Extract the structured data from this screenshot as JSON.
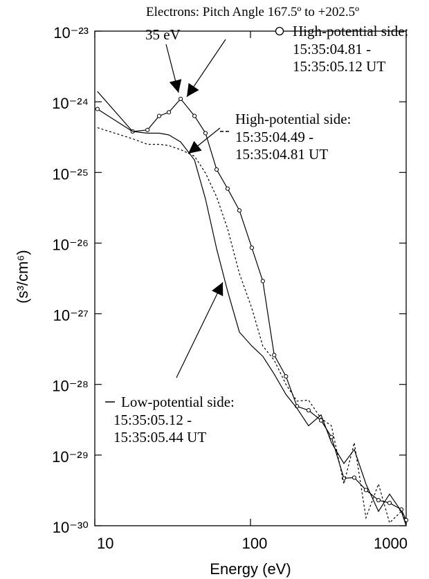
{
  "chart_data": {
    "type": "line",
    "title": "Electrons: Pitch Angle 167.5º to +202.5º",
    "x_label": "Energy (eV)",
    "y_label": "(s³/cm⁶)",
    "annotation": "35 eV",
    "xlog": true,
    "ylog": true,
    "xlim": [
      10,
      1000
    ],
    "ylim": [
      1e-30,
      1e-23
    ],
    "xticks": [
      10,
      100,
      1000
    ],
    "yticks": [
      {
        "value": 1e-30,
        "label": "10⁻³⁰"
      },
      {
        "value": 1e-29,
        "label": "10⁻²⁹"
      },
      {
        "value": 1e-28,
        "label": "10⁻²⁸"
      },
      {
        "value": 1e-27,
        "label": "10⁻²⁷"
      },
      {
        "value": 1e-26,
        "label": "10⁻²⁶"
      },
      {
        "value": 1e-25,
        "label": "10⁻²⁵"
      },
      {
        "value": 1e-24,
        "label": "10⁻²⁴"
      },
      {
        "value": 1e-23,
        "label": "10⁻²³"
      }
    ],
    "x": [
      10.4,
      17.5,
      21.8,
      25.9,
      29.9,
      35.6,
      43.7,
      51.4,
      60.6,
      71.3,
      84.9,
      102,
      120,
      142,
      169,
      199,
      236,
      284,
      331,
      398,
      464,
      552,
      664,
      782,
      931,
      1000
    ],
    "series": [
      {
        "name": "High-potential side:\n15:35:04.81 -\n15:35:05.12 UT",
        "color": "#000000",
        "linestyle": "solid",
        "marker": "circle",
        "values": [
          7.9e-25,
          3.8e-25,
          4e-25,
          6.3e-25,
          7.1e-25,
          1.1e-24,
          6.3e-25,
          3.6e-25,
          1.1e-25,
          5.9e-26,
          2.9e-26,
          8.6e-27,
          2.9e-27,
          2.6e-28,
          1.3e-28,
          4.9e-29,
          4.3e-29,
          3.1e-29,
          1.8e-29,
          4.7e-30,
          4.8e-30,
          3.2e-30,
          2.3e-30,
          2.1e-30,
          1.7e-30,
          1.2e-30
        ]
      },
      {
        "name": "High-potential side:\n15:35:04.49 -\n15:35:04.81 UT",
        "color": "#000000",
        "linestyle": "dashed",
        "values": [
          4.3e-25,
          3e-25,
          2.5e-25,
          2.5e-25,
          2.4e-25,
          2.1e-25,
          1.7e-25,
          9.8e-26,
          4.5e-26,
          1.6e-26,
          3.7e-27,
          1.2e-27,
          3.5e-28,
          2.2e-28,
          1e-28,
          5.8e-29,
          6e-29,
          3.3e-29,
          2.6e-29,
          3.9e-30,
          1.5e-29,
          1.3e-30,
          3.9e-30,
          1.1e-30,
          1.6e-30,
          1.1e-30
        ]
      },
      {
        "name": "Low-potential side:\n15:35:05.12 -\n15:35:05.44 UT",
        "color": "#000000",
        "linestyle": "solid",
        "values": [
          1.4e-24,
          3.8e-25,
          3.6e-25,
          3.6e-25,
          3.4e-25,
          2.7e-25,
          1.5e-25,
          4.2e-26,
          8.3e-27,
          2.1e-27,
          5.5e-28,
          3.5e-28,
          2.5e-28,
          1.4e-28,
          7.2e-29,
          4.6e-29,
          2.6e-29,
          3.7e-29,
          1.5e-29,
          7.6e-30,
          1.2e-29,
          3.9e-30,
          1.6e-30,
          2.8e-30,
          1.6e-30,
          1e-30
        ]
      }
    ]
  }
}
